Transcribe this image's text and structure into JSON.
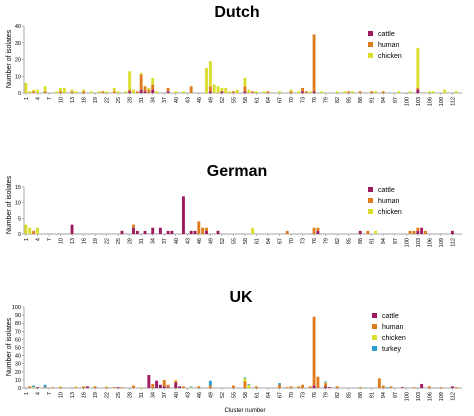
{
  "colors": {
    "cattle": "#a0195e",
    "human": "#de7b1c",
    "chicken": "#d9de2c",
    "turkey": "#2c9fcf"
  },
  "x_label": "Cluster number",
  "y_label": "Number of isolates",
  "chart_data": [
    {
      "type": "bar",
      "title": "Dutch",
      "ylabel": "Number of isolates",
      "ylim": [
        0,
        40
      ],
      "yticks": [
        0,
        10,
        20,
        30,
        40
      ],
      "n_clusters": 114,
      "xticks": [
        1,
        4,
        7,
        10,
        13,
        16,
        19,
        22,
        25,
        28,
        31,
        34,
        37,
        40,
        43,
        46,
        49,
        52,
        55,
        58,
        61,
        64,
        67,
        70,
        73,
        76,
        79,
        82,
        85,
        88,
        91,
        94,
        97,
        100,
        103,
        106,
        109,
        112
      ],
      "legend": [
        "cattle",
        "human",
        "chicken"
      ],
      "series": [
        {
          "name": "cattle",
          "values": {
            "28": 1,
            "31": 2,
            "32": 1,
            "34": 2,
            "38": 1,
            "49": 1,
            "52": 1,
            "58": 1,
            "73": 1,
            "76": 1,
            "103": 2
          }
        },
        {
          "name": "human",
          "values": {
            "3": 1,
            "6": 1,
            "10": 1,
            "13": 1,
            "16": 1,
            "21": 1,
            "24": 1,
            "28": 1,
            "30": 1,
            "31": 9,
            "32": 3,
            "33": 2,
            "34": 3,
            "38": 2,
            "44": 4,
            "49": 3,
            "55": 1,
            "58": 3,
            "60": 1,
            "64": 1,
            "70": 1,
            "73": 2,
            "74": 1,
            "76": 34,
            "85": 1,
            "88": 1,
            "91": 1,
            "94": 1,
            "103": 1
          }
        },
        {
          "name": "chicken",
          "values": {
            "1": 6,
            "2": 1,
            "3": 1,
            "4": 2,
            "6": 3,
            "9": 1,
            "10": 2,
            "11": 3,
            "13": 1,
            "14": 1,
            "16": 1,
            "18": 1,
            "20": 1,
            "22": 1,
            "24": 2,
            "25": 1,
            "27": 1,
            "28": 11,
            "29": 2,
            "31": 1,
            "33": 1,
            "34": 4,
            "35": 1,
            "40": 1,
            "42": 1,
            "48": 15,
            "49": 15,
            "50": 5,
            "51": 4,
            "52": 2,
            "53": 3,
            "54": 1,
            "56": 2,
            "58": 5,
            "59": 2,
            "61": 1,
            "63": 1,
            "67": 1,
            "70": 1,
            "72": 1,
            "75": 1,
            "78": 1,
            "82": 1,
            "84": 1,
            "86": 1,
            "92": 1,
            "98": 1,
            "101": 1,
            "103": 24,
            "106": 1,
            "107": 1,
            "110": 2,
            "113": 1
          }
        }
      ]
    },
    {
      "type": "bar",
      "title": "German",
      "ylabel": "Number of isolates",
      "ylim": [
        0,
        15
      ],
      "yticks": [
        0,
        5,
        10,
        15
      ],
      "n_clusters": 114,
      "xticks": [
        1,
        4,
        7,
        10,
        13,
        16,
        19,
        22,
        25,
        28,
        31,
        34,
        37,
        40,
        43,
        46,
        49,
        52,
        55,
        58,
        61,
        64,
        67,
        70,
        73,
        76,
        79,
        82,
        85,
        88,
        91,
        94,
        97,
        100,
        103,
        106,
        109,
        112
      ],
      "legend": [
        "cattle",
        "human",
        "chicken"
      ],
      "series": [
        {
          "name": "cattle",
          "values": {
            "13": 3,
            "26": 1,
            "29": 2,
            "30": 1,
            "32": 1,
            "34": 2,
            "36": 2,
            "38": 1,
            "39": 1,
            "42": 12,
            "44": 1,
            "45": 1,
            "48": 1,
            "51": 1,
            "77": 1,
            "88": 1,
            "103": 1,
            "104": 2,
            "112": 1
          }
        },
        {
          "name": "human",
          "values": {
            "3": 1,
            "29": 1,
            "46": 4,
            "47": 2,
            "48": 1,
            "69": 1,
            "76": 2,
            "77": 1,
            "90": 1,
            "101": 1,
            "102": 1,
            "103": 1,
            "105": 1
          }
        },
        {
          "name": "chicken",
          "values": {
            "1": 3,
            "2": 2,
            "4": 2,
            "60": 2,
            "92": 1
          }
        }
      ]
    },
    {
      "type": "bar",
      "title": "UK",
      "ylabel": "Number of isolates",
      "ylim": [
        0,
        100
      ],
      "yticks": [
        0,
        10,
        20,
        30,
        40,
        50,
        60,
        70,
        80,
        90,
        100
      ],
      "n_clusters": 114,
      "xticks": [
        1,
        4,
        7,
        10,
        13,
        16,
        19,
        22,
        25,
        28,
        31,
        34,
        37,
        40,
        43,
        46,
        49,
        52,
        55,
        58,
        61,
        64,
        67,
        70,
        73,
        76,
        79,
        82,
        85,
        88,
        91,
        94,
        97,
        100,
        103,
        106,
        109,
        112
      ],
      "legend": [
        "cattle",
        "human",
        "chicken",
        "turkey"
      ],
      "series": [
        {
          "name": "cattle",
          "values": {
            "4": 1,
            "17": 2,
            "25": 1,
            "33": 16,
            "35": 9,
            "36": 4,
            "37": 2,
            "38": 1,
            "40": 7,
            "41": 2,
            "76": 3,
            "79": 2,
            "80": 1,
            "99": 1,
            "104": 5,
            "112": 2
          }
        },
        {
          "name": "human",
          "values": {
            "2": 2,
            "6": 1,
            "8": 1,
            "10": 1,
            "14": 1,
            "16": 2,
            "19": 2,
            "22": 1,
            "24": 1,
            "26": 1,
            "29": 3,
            "34": 5,
            "37": 8,
            "38": 3,
            "40": 2,
            "42": 2,
            "46": 2,
            "49": 3,
            "55": 3,
            "58": 8,
            "61": 2,
            "67": 4,
            "69": 1,
            "70": 2,
            "72": 2,
            "73": 4,
            "75": 2,
            "76": 85,
            "77": 14,
            "79": 4,
            "82": 2,
            "88": 1,
            "93": 12,
            "94": 3,
            "96": 2,
            "102": 1,
            "106": 2,
            "109": 1,
            "113": 1
          }
        },
        {
          "name": "chicken",
          "values": {
            "3": 1,
            "10": 1,
            "14": 1,
            "22": 1,
            "31": 1,
            "40": 1,
            "44": 1,
            "58": 4,
            "59": 4,
            "79": 1
          }
        },
        {
          "name": "turkey",
          "values": {
            "3": 2,
            "6": 3,
            "44": 1,
            "49": 6,
            "58": 1,
            "59": 1,
            "67": 2,
            "79": 1,
            "95": 1
          }
        }
      ]
    }
  ]
}
